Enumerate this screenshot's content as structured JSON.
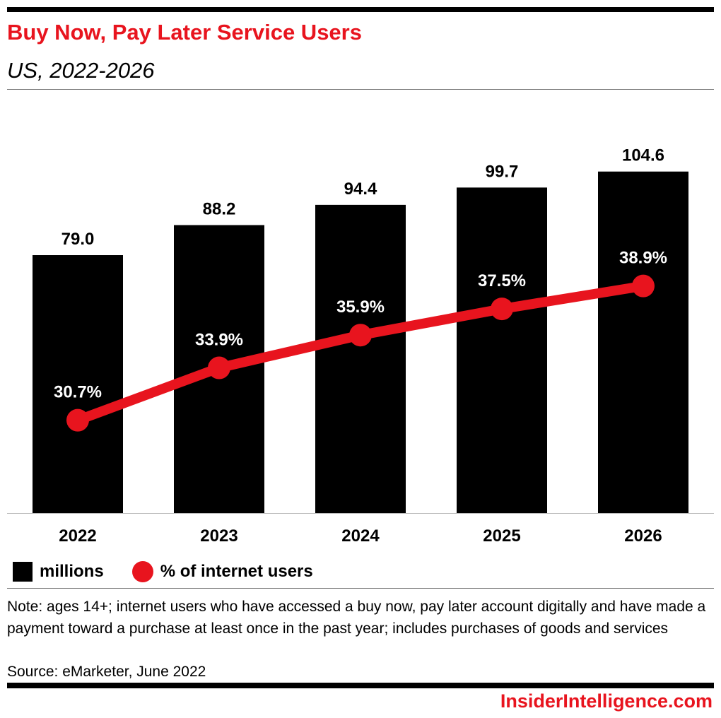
{
  "header": {
    "title": "Buy Now, Pay Later Service Users",
    "subtitle": "US, 2022-2026"
  },
  "chart_data": {
    "type": "bar+line",
    "categories": [
      "2022",
      "2023",
      "2024",
      "2025",
      "2026"
    ],
    "series": [
      {
        "name": "millions",
        "type": "bar",
        "color": "#000000",
        "values": [
          79.0,
          88.2,
          94.4,
          99.7,
          104.6
        ],
        "labels": [
          "79.0",
          "88.2",
          "94.4",
          "99.7",
          "104.6"
        ]
      },
      {
        "name": "% of internet users",
        "type": "line",
        "color": "#e8141e",
        "values": [
          30.7,
          33.9,
          35.9,
          37.5,
          38.9
        ],
        "labels": [
          "30.7%",
          "33.9%",
          "35.9%",
          "37.5%",
          "38.9%"
        ]
      }
    ],
    "grid": false,
    "legend": "bottom-left"
  },
  "legend": {
    "bar": "millions",
    "line": "% of internet users"
  },
  "footer": {
    "note": "Note: ages 14+; internet users who have accessed a buy now, pay later account digitally and have made a payment toward a purchase at least once in the past year; includes purchases of goods and services",
    "source": "Source: eMarketer, June 2022",
    "logo": "InsiderIntelligence.com"
  }
}
